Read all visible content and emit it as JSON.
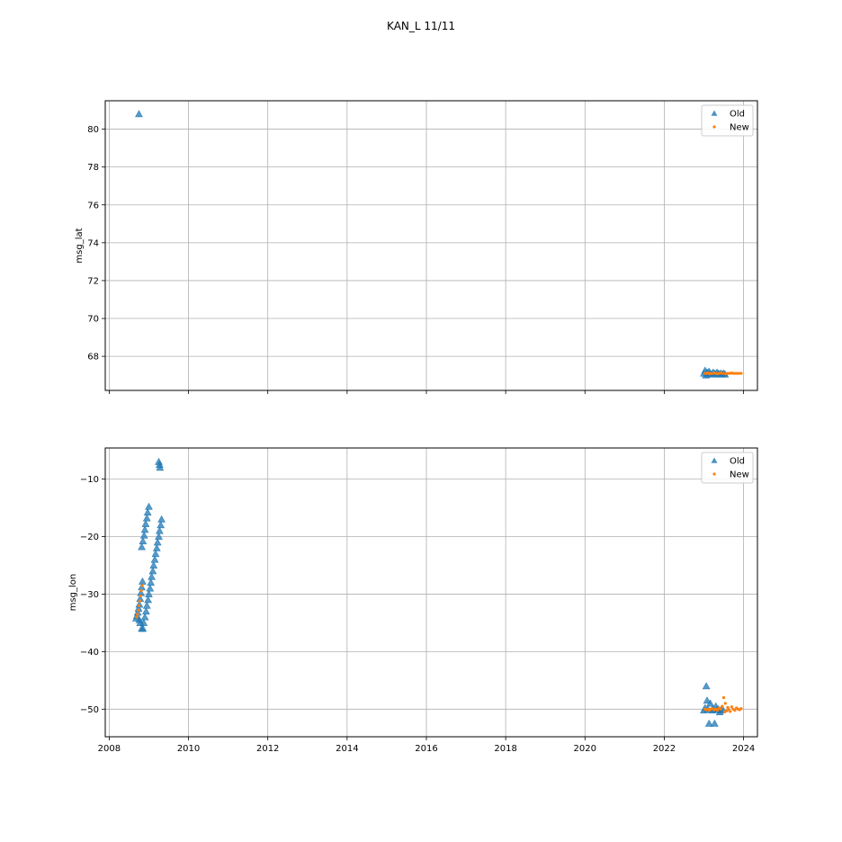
{
  "figure": {
    "title": "KAN_L 11/11"
  },
  "colors": {
    "old": "#1f77b4",
    "new": "#ff7f0e",
    "grid": "#b0b0b0",
    "axes": "#000000",
    "legend_border": "#cccccc"
  },
  "chart_data": [
    {
      "type": "scatter",
      "title": "",
      "xlabel": "",
      "ylabel": "msg_lat",
      "xlim": [
        2007.9,
        2024.35
      ],
      "ylim": [
        66.2,
        81.5
      ],
      "xticks": [
        2008,
        2010,
        2012,
        2014,
        2016,
        2018,
        2020,
        2022,
        2024
      ],
      "xtick_labels_visible": false,
      "yticks": [
        68,
        70,
        72,
        74,
        76,
        78,
        80
      ],
      "grid": true,
      "legend": {
        "placement": "top-right",
        "entries": [
          "Old",
          "New"
        ]
      },
      "series": [
        {
          "name": "Old",
          "marker": "triangle",
          "points": [
            [
              2008.75,
              80.8
            ],
            [
              2023.0,
              67.1
            ],
            [
              2023.03,
              67.25
            ],
            [
              2023.05,
              67.0
            ],
            [
              2023.08,
              67.15
            ],
            [
              2023.1,
              67.05
            ],
            [
              2023.13,
              67.2
            ],
            [
              2023.16,
              67.1
            ],
            [
              2023.2,
              67.05
            ],
            [
              2023.23,
              67.15
            ],
            [
              2023.27,
              67.1
            ],
            [
              2023.3,
              67.05
            ],
            [
              2023.33,
              67.15
            ],
            [
              2023.37,
              67.1
            ],
            [
              2023.4,
              67.05
            ],
            [
              2023.43,
              67.1
            ],
            [
              2023.47,
              67.05
            ],
            [
              2023.5,
              67.1
            ],
            [
              2023.53,
              67.05
            ]
          ]
        },
        {
          "name": "New",
          "marker": "dot",
          "points": [
            [
              2023.02,
              67.1
            ],
            [
              2023.06,
              67.1
            ],
            [
              2023.1,
              67.12
            ],
            [
              2023.14,
              67.08
            ],
            [
              2023.18,
              67.1
            ],
            [
              2023.22,
              67.1
            ],
            [
              2023.26,
              67.12
            ],
            [
              2023.3,
              67.1
            ],
            [
              2023.34,
              67.08
            ],
            [
              2023.38,
              67.1
            ],
            [
              2023.42,
              67.12
            ],
            [
              2023.46,
              67.1
            ],
            [
              2023.5,
              67.1
            ],
            [
              2023.54,
              67.08
            ],
            [
              2023.58,
              67.1
            ],
            [
              2023.62,
              67.1
            ],
            [
              2023.66,
              67.1
            ],
            [
              2023.7,
              67.12
            ],
            [
              2023.74,
              67.1
            ],
            [
              2023.78,
              67.1
            ],
            [
              2023.82,
              67.1
            ],
            [
              2023.86,
              67.1
            ],
            [
              2023.9,
              67.1
            ],
            [
              2023.94,
              67.1
            ]
          ]
        }
      ]
    },
    {
      "type": "scatter",
      "title": "",
      "xlabel": "",
      "ylabel": "msg_lon",
      "xlim": [
        2007.9,
        2024.35
      ],
      "ylim": [
        -54.8,
        -4.6
      ],
      "xticks": [
        2008,
        2010,
        2012,
        2014,
        2016,
        2018,
        2020,
        2022,
        2024
      ],
      "xtick_labels_visible": true,
      "yticks": [
        -50,
        -40,
        -30,
        -20,
        -10
      ],
      "grid": true,
      "legend": {
        "placement": "top-right",
        "entries": [
          "Old",
          "New"
        ]
      },
      "series": [
        {
          "name": "Old",
          "marker": "triangle",
          "points": [
            [
              2008.68,
              -34.2
            ],
            [
              2008.7,
              -33.8
            ],
            [
              2008.72,
              -33.2
            ],
            [
              2008.74,
              -32.5
            ],
            [
              2008.76,
              -31.8
            ],
            [
              2008.78,
              -30.8
            ],
            [
              2008.8,
              -29.8
            ],
            [
              2008.82,
              -28.8
            ],
            [
              2008.84,
              -27.8
            ],
            [
              2008.76,
              -34.5
            ],
            [
              2008.78,
              -35.0
            ],
            [
              2008.82,
              -36.0
            ],
            [
              2008.85,
              -36.0
            ],
            [
              2008.82,
              -21.8
            ],
            [
              2008.85,
              -20.8
            ],
            [
              2008.88,
              -19.8
            ],
            [
              2008.9,
              -18.8
            ],
            [
              2008.92,
              -17.8
            ],
            [
              2008.95,
              -16.8
            ],
            [
              2008.97,
              -15.8
            ],
            [
              2009.0,
              -14.8
            ],
            [
              2008.87,
              -35.0
            ],
            [
              2008.9,
              -34.0
            ],
            [
              2008.93,
              -33.0
            ],
            [
              2008.95,
              -32.0
            ],
            [
              2008.98,
              -31.0
            ],
            [
              2009.0,
              -30.0
            ],
            [
              2009.03,
              -29.0
            ],
            [
              2009.05,
              -28.0
            ],
            [
              2009.07,
              -27.0
            ],
            [
              2009.1,
              -26.0
            ],
            [
              2009.12,
              -25.0
            ],
            [
              2009.15,
              -24.0
            ],
            [
              2009.17,
              -23.0
            ],
            [
              2009.2,
              -22.0
            ],
            [
              2009.22,
              -21.0
            ],
            [
              2009.25,
              -20.0
            ],
            [
              2009.27,
              -19.0
            ],
            [
              2009.3,
              -18.0
            ],
            [
              2009.32,
              -17.0
            ],
            [
              2009.25,
              -7.0
            ],
            [
              2009.27,
              -7.5
            ],
            [
              2009.28,
              -8.0
            ],
            [
              2023.0,
              -50.2
            ],
            [
              2023.03,
              -49.8
            ],
            [
              2023.06,
              -46.0
            ],
            [
              2023.08,
              -48.5
            ],
            [
              2023.1,
              -50.0
            ],
            [
              2023.13,
              -52.5
            ],
            [
              2023.16,
              -49.0
            ],
            [
              2023.2,
              -50.2
            ],
            [
              2023.23,
              -50.0
            ],
            [
              2023.27,
              -52.5
            ],
            [
              2023.3,
              -49.5
            ],
            [
              2023.33,
              -50.1
            ],
            [
              2023.37,
              -50.0
            ],
            [
              2023.4,
              -50.5
            ],
            [
              2023.43,
              -50.2
            ],
            [
              2023.47,
              -50.0
            ]
          ]
        },
        {
          "name": "New",
          "marker": "dot",
          "points": [
            [
              2008.69,
              -34.0
            ],
            [
              2008.71,
              -33.5
            ],
            [
              2008.73,
              -32.8
            ],
            [
              2008.75,
              -32.0
            ],
            [
              2008.77,
              -31.2
            ],
            [
              2008.79,
              -30.3
            ],
            [
              2008.81,
              -29.4
            ],
            [
              2008.83,
              -28.5
            ],
            [
              2023.02,
              -50.0
            ],
            [
              2023.06,
              -50.1
            ],
            [
              2023.1,
              -50.0
            ],
            [
              2023.14,
              -50.2
            ],
            [
              2023.18,
              -50.0
            ],
            [
              2023.22,
              -49.9
            ],
            [
              2023.26,
              -50.1
            ],
            [
              2023.3,
              -50.0
            ],
            [
              2023.34,
              -50.2
            ],
            [
              2023.38,
              -49.8
            ],
            [
              2023.42,
              -50.0
            ],
            [
              2023.46,
              -49.5
            ],
            [
              2023.5,
              -48.0
            ],
            [
              2023.52,
              -50.5
            ],
            [
              2023.54,
              -49.0
            ],
            [
              2023.58,
              -50.3
            ],
            [
              2023.6,
              -49.7
            ],
            [
              2023.62,
              -50.0
            ],
            [
              2023.66,
              -50.4
            ],
            [
              2023.7,
              -49.6
            ],
            [
              2023.74,
              -50.0
            ],
            [
              2023.78,
              -50.2
            ],
            [
              2023.82,
              -49.8
            ],
            [
              2023.86,
              -50.0
            ],
            [
              2023.9,
              -50.1
            ],
            [
              2023.94,
              -49.9
            ]
          ]
        }
      ]
    }
  ]
}
